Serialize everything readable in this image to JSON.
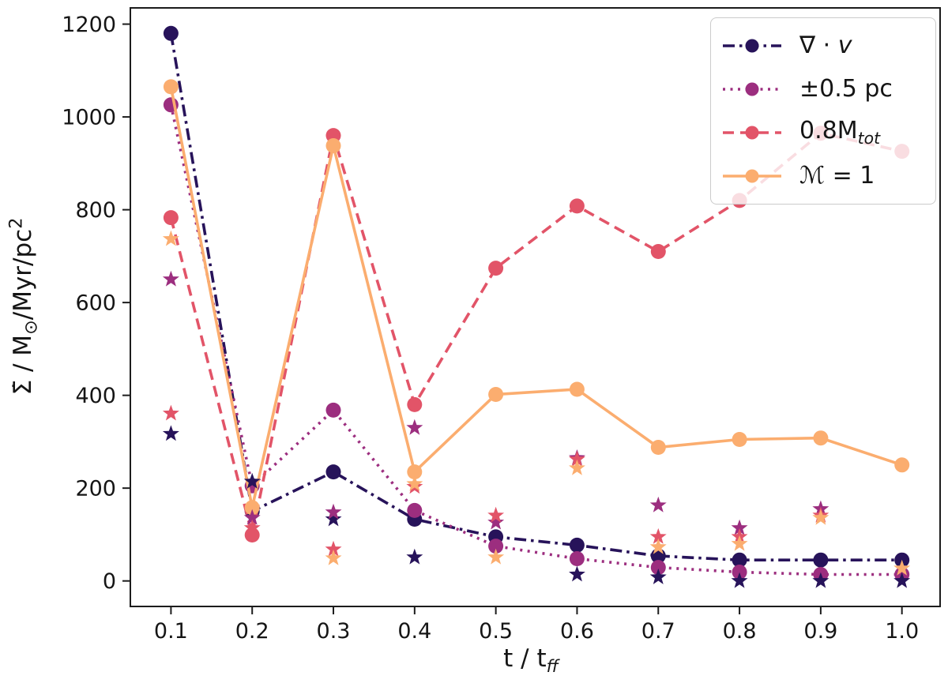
{
  "chart_data": {
    "type": "line",
    "title": "",
    "xlabel": {
      "plain": "t / t",
      "sub": "ff"
    },
    "ylabel": {
      "p1": "Σ̇ / M",
      "sub": "⊙",
      "p2": "/Myr/pc",
      "sup": "2"
    },
    "x": [
      0.1,
      0.2,
      0.3,
      0.4,
      0.5,
      0.6,
      0.7,
      0.8,
      0.9,
      1.0
    ],
    "xticks": [
      0.1,
      0.2,
      0.3,
      0.4,
      0.5,
      0.6,
      0.7,
      0.8,
      0.9,
      1.0
    ],
    "yticks": [
      0,
      200,
      400,
      600,
      800,
      1000,
      1200
    ],
    "xlim": [
      0.05,
      1.047
    ],
    "ylim": [
      -55,
      1235
    ],
    "grid": false,
    "legend_position": "upper right",
    "line_series": [
      {
        "name": "∇ · v",
        "color": "#27135a",
        "linestyle": "dashdot",
        "marker": "circle",
        "values": [
          1180,
          150,
          235,
          133,
          95,
          77,
          54,
          45,
          45,
          45
        ]
      },
      {
        "name": "±0.5 pc",
        "color": "#9c2e7f",
        "linestyle": "dotted",
        "marker": "circle",
        "values": [
          1026,
          205,
          368,
          152,
          75,
          48,
          29,
          19,
          14,
          14
        ]
      },
      {
        "name": "0.8Mtot",
        "color": "#e25468",
        "linestyle": "dashed",
        "marker": "circle",
        "values": [
          783,
          99,
          960,
          380,
          674,
          808,
          710,
          820,
          965,
          926
        ]
      },
      {
        "name": "M = 1",
        "color": "#fbad6f",
        "linestyle": "solid",
        "marker": "circle",
        "values": [
          1065,
          158,
          938,
          235,
          402,
          413,
          288,
          305,
          308,
          250
        ]
      }
    ],
    "star_series": [
      {
        "name": "∇ · v stars",
        "color": "#27135a",
        "marker": "star",
        "values": [
          317,
          214,
          133,
          51,
          null,
          14,
          8,
          0,
          0,
          0
        ]
      },
      {
        "name": "±0.5 pc stars",
        "color": "#9c2e7f",
        "marker": "star",
        "values": [
          650,
          136,
          148,
          330,
          126,
          265,
          163,
          114,
          155,
          null
        ]
      },
      {
        "name": "0.8Mtot stars",
        "color": "#e25468",
        "marker": "star",
        "values": [
          361,
          114,
          68,
          203,
          141,
          262,
          95,
          95,
          141,
          null
        ]
      },
      {
        "name": "M = 1 stars",
        "color": "#fbad6f",
        "marker": "star",
        "values": [
          737,
          null,
          49,
          209,
          51,
          243,
          73,
          80,
          136,
          27
        ]
      }
    ],
    "legend": {
      "entries": [
        {
          "id": "grad-v",
          "color": "#27135a",
          "dash": "dashdot",
          "label": {
            "plain": "∇ · ",
            "italic": "v",
            "sub": ""
          }
        },
        {
          "id": "pm-05pc",
          "color": "#9c2e7f",
          "dash": "dotted",
          "label": {
            "plain": "±0.5 pc",
            "italic": "",
            "sub": ""
          }
        },
        {
          "id": "08-mtot",
          "color": "#e25468",
          "dash": "dashed",
          "label": {
            "plain": "0.8M",
            "italic": "",
            "sub": "tot"
          }
        },
        {
          "id": "mach-1",
          "color": "#fbad6f",
          "dash": "solid",
          "label": {
            "plain": "ℳ = 1",
            "italic": "",
            "sub": ""
          }
        }
      ]
    }
  }
}
